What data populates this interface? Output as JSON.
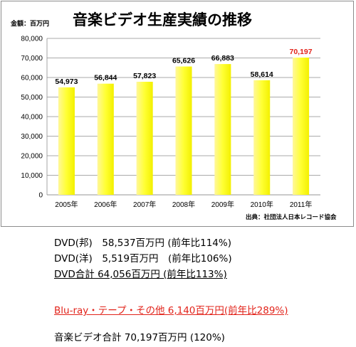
{
  "chart_data": {
    "type": "bar",
    "title": "音楽ビデオ生産実績の推移",
    "unit_label": "金額：百万円",
    "categories": [
      "2005年",
      "2006年",
      "2007年",
      "2008年",
      "2009年",
      "2010年",
      "2011年"
    ],
    "values": [
      54973,
      56844,
      57823,
      65626,
      66883,
      58614,
      70197
    ],
    "value_labels": [
      "54,973",
      "56,844",
      "57,823",
      "65,626",
      "66,883",
      "58,614",
      "70,197"
    ],
    "highlight_index": 6,
    "y_ticks": [
      "0",
      "10,000",
      "20,000",
      "30,000",
      "40,000",
      "50,000",
      "60,000",
      "70,000",
      "80,000"
    ],
    "ylim": [
      0,
      80000
    ],
    "grid": true,
    "bar_color": "#ffff3a",
    "highlight_label_color": "#e2231a",
    "source": "出典：社団法人日本レコード協会"
  },
  "notes": {
    "line1": "DVD(邦)　58,537百万円 (前年比114%)",
    "line2": "DVD(洋)　5,519百万円　(前年比106%)",
    "line3": "DVD合計 64,056百万円 (前年比113%)",
    "line4": "Blu-ray・テープ・その他 6,140百万円(前年比289%)",
    "line5": "音楽ビデオ合計 70,197百万円 (120%)"
  },
  "colors": {
    "accent_red": "#e2231a",
    "bar_yellow": "#ffff3a"
  }
}
